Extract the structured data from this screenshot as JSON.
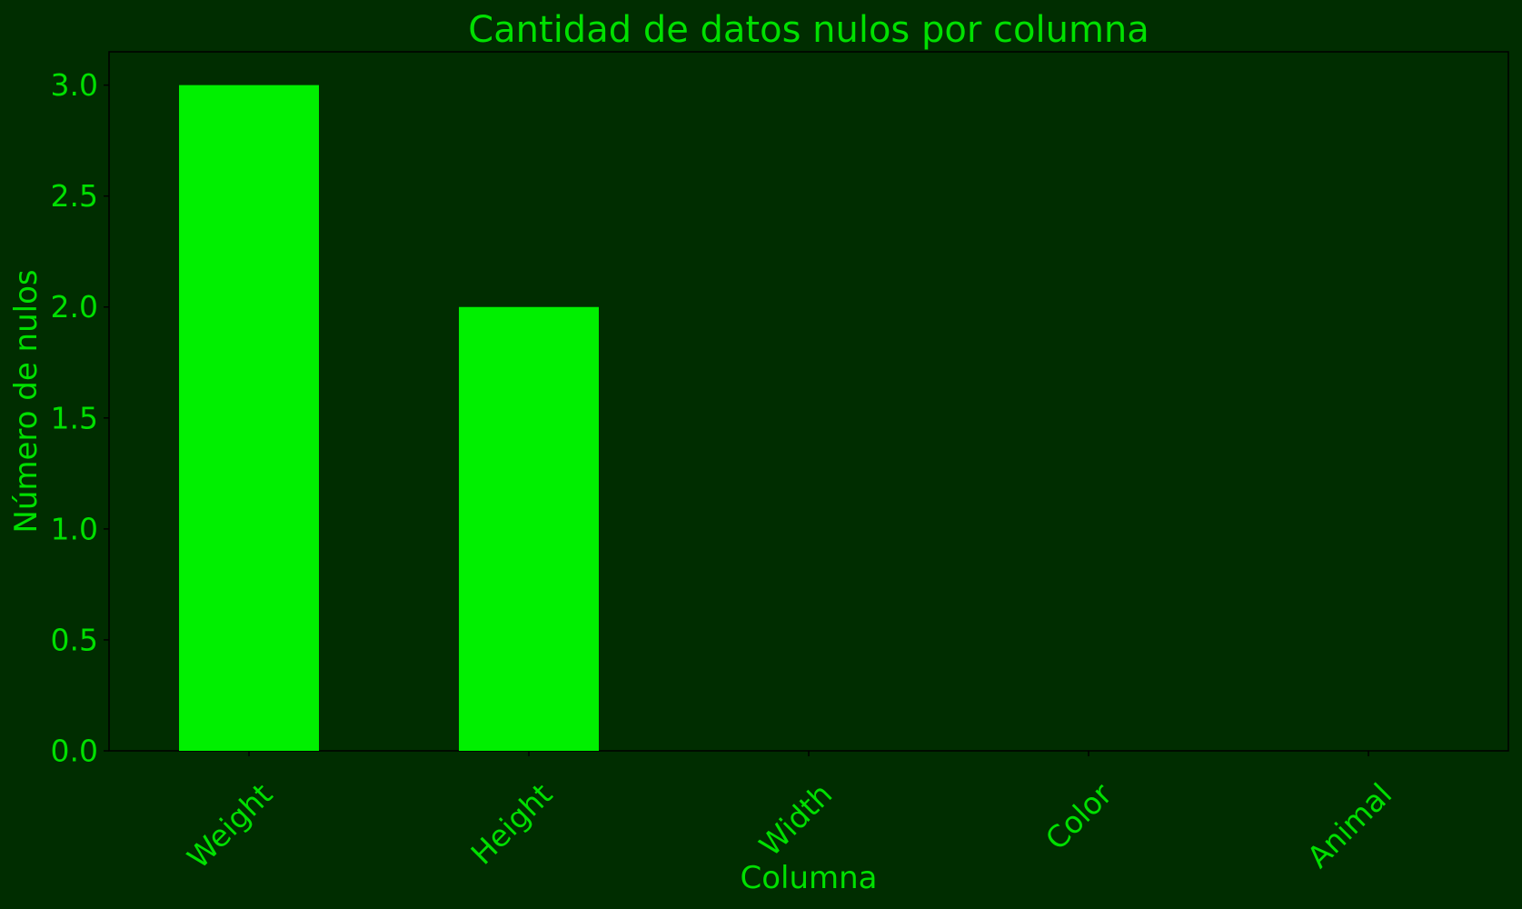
{
  "chart_data": {
    "type": "bar",
    "title": "Cantidad de datos nulos por columna",
    "xlabel": "Columna",
    "ylabel": "Número de nulos",
    "categories": [
      "Weight",
      "Height",
      "Width",
      "Color",
      "Animal"
    ],
    "values": [
      3,
      2,
      0,
      0,
      0
    ],
    "ylim": [
      0,
      3.15
    ],
    "yticks": [
      "0.0",
      "0.5",
      "1.0",
      "1.5",
      "2.0",
      "2.5",
      "3.0"
    ],
    "grid": false,
    "legend": false,
    "colors": {
      "background": "#002d00",
      "bar": "#00f000",
      "text": "#00e000",
      "axis": "#000000"
    }
  }
}
